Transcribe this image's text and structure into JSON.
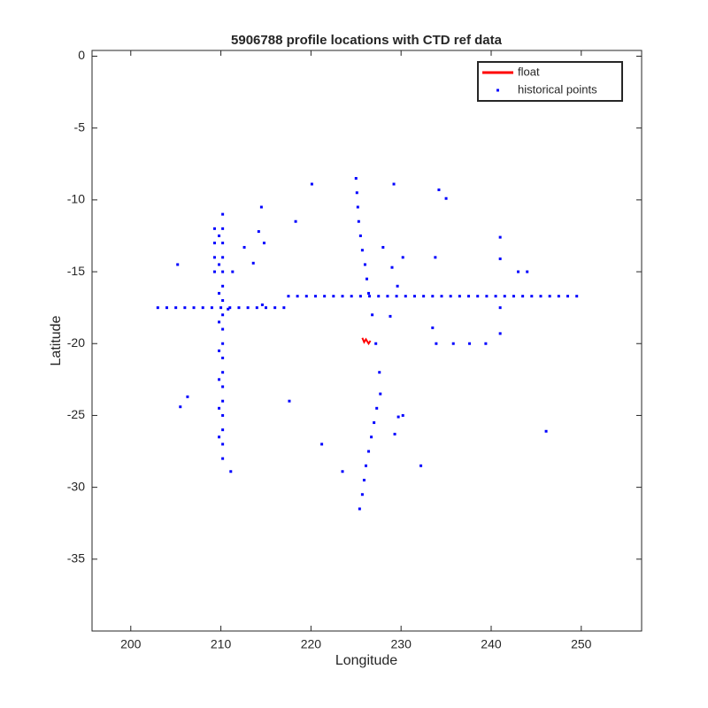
{
  "chart_data": {
    "type": "scatter",
    "title": "5906788 profile locations with CTD ref data",
    "xlabel": "Longitude",
    "ylabel": "Latitude",
    "xlim": [
      195.7,
      256.7
    ],
    "ylim": [
      -40,
      0.4
    ],
    "xticks": [
      200,
      210,
      220,
      230,
      240,
      250
    ],
    "yticks": [
      0,
      -5,
      -10,
      -15,
      -20,
      -25,
      -30,
      -35
    ],
    "legend": "upper right",
    "series": [
      {
        "name": "float",
        "color": "#ff0000",
        "marker": "line",
        "x": [
          225.7,
          225.9,
          226.1,
          226.4,
          226.6
        ],
        "y": [
          -19.6,
          -19.9,
          -19.7,
          -20.0,
          -19.8
        ]
      },
      {
        "name": "historical points",
        "color": "#0000ff",
        "marker": "point",
        "x": [
          203,
          204,
          205,
          206,
          207,
          208,
          209,
          210,
          211,
          212,
          213,
          214,
          215,
          216,
          217,
          217.5,
          218.5,
          219.5,
          220.5,
          221.5,
          222.5,
          223.5,
          224.5,
          225.5,
          226.5,
          227.5,
          228.5,
          229.5,
          230.5,
          231.5,
          232.5,
          233.5,
          234.5,
          235.5,
          236.5,
          237.5,
          238.5,
          239.5,
          240.5,
          241.5,
          242.5,
          243.5,
          244.5,
          245.5,
          246.5,
          247.5,
          248.5,
          249.5,
          210.2,
          210.2,
          210.2,
          210.2,
          210.2,
          210.2,
          210.2,
          210.2,
          210.2,
          210.2,
          210.2,
          210.2,
          210.2,
          210.2,
          210.2,
          210.2,
          210.2,
          210.2,
          209.8,
          209.8,
          209.8,
          209.8,
          209.8,
          209.8,
          209.8,
          209.8,
          209.3,
          209.3,
          209.3,
          209.3,
          225.0,
          225.1,
          225.2,
          225.3,
          225.5,
          225.7,
          226.0,
          226.2,
          226.4,
          226.8,
          227.2,
          227.6,
          227.7,
          227.3,
          227.0,
          226.7,
          226.4,
          226.1,
          225.9,
          225.7,
          225.4,
          220.1,
          229.2,
          234.2,
          235.0,
          214.5,
          218.3,
          214.2,
          214.8,
          212.6,
          228.0,
          230.2,
          233.8,
          241.0,
          241.0,
          205.2,
          213.6,
          229.0,
          243.0,
          244.0,
          211.3,
          229.6,
          241.0,
          228.8,
          233.5,
          233.9,
          235.8,
          237.6,
          239.4,
          241.0,
          206.3,
          205.5,
          217.6,
          229.7,
          230.2,
          229.3,
          246.1,
          221.2,
          223.5,
          232.2,
          211.1,
          214.6,
          210.8
        ],
        "y": [
          -17.5,
          -17.5,
          -17.5,
          -17.5,
          -17.5,
          -17.5,
          -17.5,
          -17.5,
          -17.5,
          -17.5,
          -17.5,
          -17.5,
          -17.5,
          -17.5,
          -17.5,
          -16.7,
          -16.7,
          -16.7,
          -16.7,
          -16.7,
          -16.7,
          -16.7,
          -16.7,
          -16.7,
          -16.7,
          -16.7,
          -16.7,
          -16.7,
          -16.7,
          -16.7,
          -16.7,
          -16.7,
          -16.7,
          -16.7,
          -16.7,
          -16.7,
          -16.7,
          -16.7,
          -16.7,
          -16.7,
          -16.7,
          -16.7,
          -16.7,
          -16.7,
          -16.7,
          -16.7,
          -16.7,
          -16.7,
          -11,
          -12,
          -13,
          -14,
          -15,
          -16,
          -17,
          -18,
          -19,
          -20,
          -21,
          -22,
          -23,
          -24,
          -25,
          -26,
          -27,
          -28,
          -12.5,
          -14.5,
          -16.5,
          -18.5,
          -20.5,
          -22.5,
          -24.5,
          -26.5,
          -12,
          -13,
          -14,
          -15,
          -8.5,
          -9.5,
          -10.5,
          -11.5,
          -12.5,
          -13.5,
          -14.5,
          -15.5,
          -16.5,
          -18,
          -20,
          -22,
          -23.5,
          -24.5,
          -25.5,
          -26.5,
          -27.5,
          -28.5,
          -29.5,
          -30.5,
          -31.5,
          -8.9,
          -8.9,
          -9.3,
          -9.9,
          -10.5,
          -11.5,
          -12.2,
          -13,
          -13.3,
          -13.3,
          -14,
          -14,
          -12.6,
          -14.1,
          -14.5,
          -14.4,
          -14.7,
          -15,
          -15,
          -15,
          -16,
          -17.5,
          -18.1,
          -18.9,
          -20,
          -20,
          -20,
          -20,
          -19.3,
          -23.7,
          -24.4,
          -24,
          -25.1,
          -25,
          -26.3,
          -26.1,
          -27,
          -28.9,
          -28.5,
          -28.9,
          -17.3,
          -17.6
        ]
      }
    ]
  }
}
